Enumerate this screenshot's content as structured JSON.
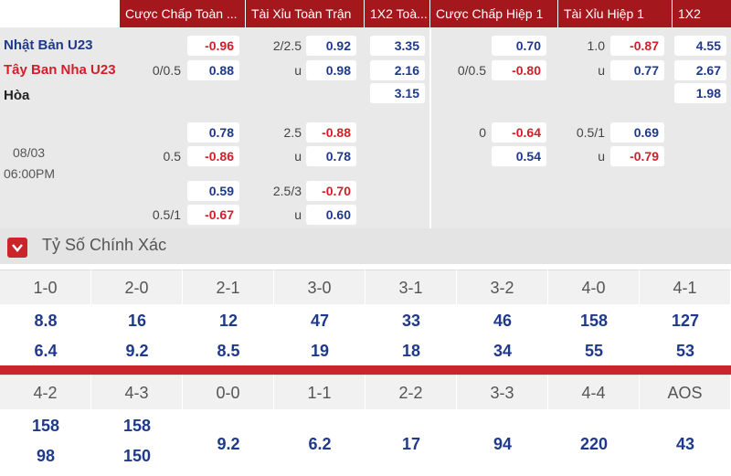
{
  "header": {
    "columns": [
      "Cược Chấp Toàn ...",
      "Tài Xỉu Toàn Trận",
      "1X2 Toà...",
      "Cược Chấp Hiệp 1",
      "Tài Xỉu Hiệp 1",
      "1X2"
    ]
  },
  "match": {
    "home": "Nhật Bản U23",
    "away": "Tây Ban Nha U23",
    "draw": "Hòa",
    "date": "08/03",
    "time": "06:00PM"
  },
  "odds_rows": [
    [
      {
        "odds": "-0.96"
      },
      {
        "line": "2/2.5",
        "odds": "0.92"
      },
      {
        "odds": "3.35"
      },
      {
        "odds": "0.70"
      },
      {
        "line": "1.0",
        "odds": "-0.87"
      },
      {
        "odds": "4.55"
      }
    ],
    [
      {
        "line": "0/0.5",
        "odds": "0.88"
      },
      {
        "line": "u",
        "odds": "0.98"
      },
      {
        "odds": "2.16"
      },
      {
        "line": "0/0.5",
        "odds": "-0.80"
      },
      {
        "line": "u",
        "odds": "0.77"
      },
      {
        "odds": "2.67"
      }
    ],
    [
      null,
      null,
      {
        "odds": "3.15"
      },
      null,
      null,
      {
        "odds": "1.98"
      }
    ],
    [
      {
        "odds": "0.78"
      },
      {
        "line": "2.5",
        "odds": "-0.88"
      },
      null,
      {
        "line": "0",
        "odds": "-0.64"
      },
      {
        "line": "0.5/1",
        "odds": "0.69"
      },
      null
    ],
    [
      {
        "line": "0.5",
        "odds": "-0.86"
      },
      {
        "line": "u",
        "odds": "0.78"
      },
      null,
      {
        "odds": "0.54"
      },
      {
        "line": "u",
        "odds": "-0.79"
      },
      null
    ],
    [
      {
        "odds": "0.59"
      },
      {
        "line": "2.5/3",
        "odds": "-0.70"
      },
      null,
      null,
      null,
      null
    ],
    [
      {
        "line": "0.5/1",
        "odds": "-0.67"
      },
      {
        "line": "u",
        "odds": "0.60"
      },
      null,
      null,
      null,
      null
    ]
  ],
  "correct_score": {
    "title": "Tỷ Số Chính Xác",
    "rows": [
      [
        {
          "score": "1-0",
          "odds": [
            "8.8",
            "6.4"
          ]
        },
        {
          "score": "2-0",
          "odds": [
            "16",
            "9.2"
          ]
        },
        {
          "score": "2-1",
          "odds": [
            "12",
            "8.5"
          ]
        },
        {
          "score": "3-0",
          "odds": [
            "47",
            "19"
          ]
        },
        {
          "score": "3-1",
          "odds": [
            "33",
            "18"
          ]
        },
        {
          "score": "3-2",
          "odds": [
            "46",
            "34"
          ]
        },
        {
          "score": "4-0",
          "odds": [
            "158",
            "55"
          ]
        },
        {
          "score": "4-1",
          "odds": [
            "127",
            "53"
          ]
        }
      ],
      [
        {
          "score": "4-2",
          "odds": [
            "158",
            "98"
          ]
        },
        {
          "score": "4-3",
          "odds": [
            "158",
            "150"
          ]
        },
        {
          "score": "0-0",
          "odds": [
            "9.2"
          ]
        },
        {
          "score": "1-1",
          "odds": [
            "6.2"
          ]
        },
        {
          "score": "2-2",
          "odds": [
            "17"
          ]
        },
        {
          "score": "3-3",
          "odds": [
            "94"
          ]
        },
        {
          "score": "4-4",
          "odds": [
            "220"
          ]
        },
        {
          "score": "AOS",
          "odds": [
            "43"
          ]
        }
      ]
    ]
  }
}
